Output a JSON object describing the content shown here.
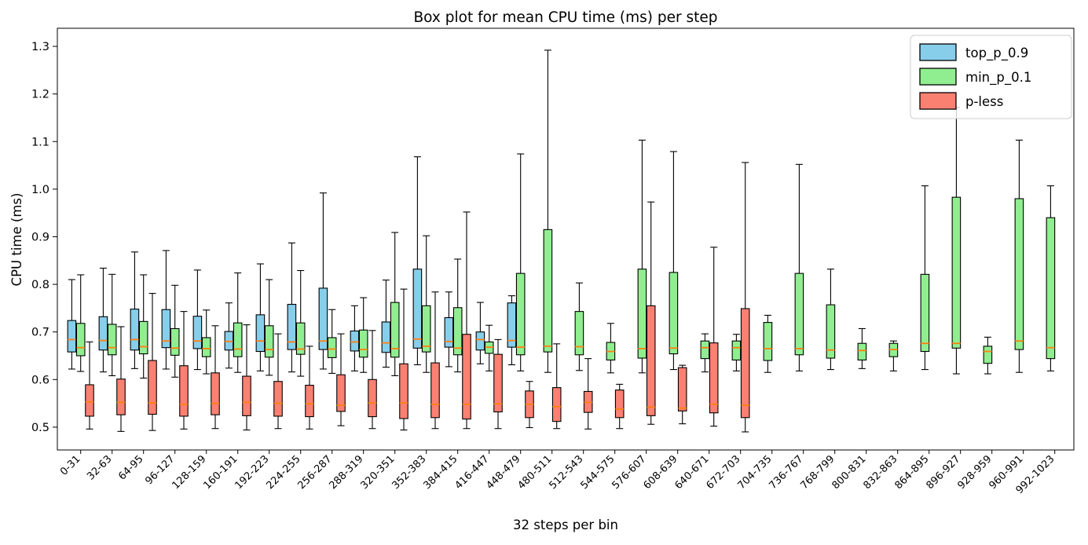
{
  "title": "Box plot for mean CPU time (ms) per step",
  "xlabel": "32 steps per bin",
  "ylabel": "CPU time (ms)",
  "legend": {
    "entries": [
      {
        "label": "top_p_0.9",
        "color": "#87CEEB"
      },
      {
        "label": "min_p_0.1",
        "color": "#90EE90"
      },
      {
        "label": "p-less",
        "color": "#FA8072"
      }
    ],
    "position": "upper right"
  },
  "chart_data": {
    "type": "box",
    "title": "Box plot for mean CPU time (ms) per step",
    "xlabel": "32 steps per bin",
    "ylabel": "CPU time (ms)",
    "grid": false,
    "legend_position": "upper right",
    "ylim": [
      0.452,
      1.338
    ],
    "yticks": [
      0.5,
      0.6,
      0.7,
      0.8,
      0.9,
      1.0,
      1.1,
      1.2,
      1.3
    ],
    "ytick_labels": [
      "0.5",
      "0.6",
      "0.7",
      "0.8",
      "0.9",
      "1.0",
      "1.1",
      "1.2",
      "1.3"
    ],
    "categories": [
      "0-31",
      "32-63",
      "64-95",
      "96-127",
      "128-159",
      "160-191",
      "192-223",
      "224-255",
      "256-287",
      "288-319",
      "320-351",
      "352-383",
      "384-415",
      "416-447",
      "448-479",
      "480-511",
      "512-543",
      "544-575",
      "576-607",
      "608-639",
      "640-671",
      "672-703",
      "704-735",
      "736-767",
      "768-799",
      "800-831",
      "832-863",
      "864-895",
      "896-927",
      "928-959",
      "960-991",
      "992-1023"
    ],
    "box_value_order": [
      "whisker_low",
      "q1",
      "median",
      "q3",
      "whisker_high"
    ],
    "median_color": "#ff7f0e",
    "series": [
      {
        "name": "top_p_0.9",
        "color": "#87CEEB",
        "boxes": [
          [
            0.622,
            0.658,
            0.684,
            0.724,
            0.81
          ],
          [
            0.616,
            0.662,
            0.682,
            0.732,
            0.834
          ],
          [
            0.623,
            0.662,
            0.684,
            0.748,
            0.868
          ],
          [
            0.622,
            0.667,
            0.681,
            0.747,
            0.871
          ],
          [
            0.621,
            0.665,
            0.681,
            0.733,
            0.83
          ],
          [
            0.624,
            0.662,
            0.68,
            0.701,
            0.761
          ],
          [
            0.618,
            0.659,
            0.681,
            0.736,
            0.843
          ],
          [
            0.616,
            0.663,
            0.679,
            0.758,
            0.887
          ],
          [
            0.622,
            0.663,
            0.681,
            0.792,
            0.992
          ],
          [
            0.618,
            0.66,
            0.679,
            0.702,
            0.755
          ],
          [
            0.626,
            0.657,
            0.677,
            0.721,
            0.809
          ],
          [
            0.631,
            0.666,
            0.685,
            0.832,
            1.068
          ],
          [
            0.627,
            0.668,
            0.68,
            0.73,
            0.784
          ],
          [
            0.633,
            0.662,
            0.684,
            0.7,
            0.762
          ],
          [
            0.631,
            0.668,
            0.682,
            0.761,
            0.776
          ],
          null,
          null,
          null,
          null,
          null,
          null,
          null,
          null,
          null,
          null,
          null,
          null,
          null,
          null,
          null,
          null,
          null
        ]
      },
      {
        "name": "min_p_0.1",
        "color": "#90EE90",
        "boxes": [
          [
            0.617,
            0.65,
            0.667,
            0.718,
            0.82
          ],
          [
            0.608,
            0.652,
            0.667,
            0.716,
            0.821
          ],
          [
            0.603,
            0.654,
            0.669,
            0.722,
            0.82
          ],
          [
            0.605,
            0.651,
            0.666,
            0.707,
            0.798
          ],
          [
            0.612,
            0.648,
            0.665,
            0.688,
            0.746
          ],
          [
            0.615,
            0.648,
            0.664,
            0.719,
            0.824
          ],
          [
            0.609,
            0.647,
            0.663,
            0.713,
            0.81
          ],
          [
            0.607,
            0.653,
            0.664,
            0.719,
            0.829
          ],
          [
            0.613,
            0.646,
            0.664,
            0.688,
            0.747
          ],
          [
            0.615,
            0.647,
            0.663,
            0.704,
            0.772
          ],
          [
            0.608,
            0.647,
            0.665,
            0.762,
            0.909
          ],
          [
            0.615,
            0.658,
            0.67,
            0.755,
            0.902
          ],
          [
            0.616,
            0.652,
            0.666,
            0.751,
            0.853
          ],
          [
            0.618,
            0.655,
            0.668,
            0.679,
            0.714
          ],
          [
            0.618,
            0.652,
            0.668,
            0.823,
            1.074
          ],
          [
            0.615,
            0.658,
            0.67,
            0.915,
            1.292
          ],
          [
            0.619,
            0.652,
            0.669,
            0.743,
            0.803
          ],
          [
            0.614,
            0.641,
            0.659,
            0.678,
            0.718
          ],
          [
            0.614,
            0.645,
            0.665,
            0.832,
            1.103
          ],
          [
            0.621,
            0.654,
            0.666,
            0.825,
            1.079
          ],
          [
            0.616,
            0.644,
            0.667,
            0.681,
            0.696
          ],
          [
            0.618,
            0.641,
            0.667,
            0.681,
            0.695
          ],
          [
            0.615,
            0.64,
            0.665,
            0.72,
            0.735
          ],
          [
            0.618,
            0.652,
            0.665,
            0.823,
            1.052
          ],
          [
            0.621,
            0.645,
            0.662,
            0.757,
            0.832
          ],
          [
            0.623,
            0.641,
            0.661,
            0.676,
            0.707
          ],
          [
            0.618,
            0.648,
            0.663,
            0.676,
            0.681
          ],
          [
            0.621,
            0.659,
            0.676,
            0.821,
            1.007
          ],
          [
            0.612,
            0.666,
            0.676,
            0.983,
            1.172
          ],
          [
            0.612,
            0.634,
            0.659,
            0.67,
            0.689
          ],
          [
            0.615,
            0.663,
            0.681,
            0.98,
            1.103
          ],
          [
            0.618,
            0.644,
            0.667,
            0.94,
            1.007
          ]
        ]
      },
      {
        "name": "p-less",
        "color": "#FA8072",
        "boxes": [
          [
            0.496,
            0.523,
            0.553,
            0.589,
            0.679
          ],
          [
            0.491,
            0.526,
            0.552,
            0.601,
            0.711
          ],
          [
            0.493,
            0.527,
            0.551,
            0.64,
            0.781
          ],
          [
            0.496,
            0.523,
            0.548,
            0.629,
            0.743
          ],
          [
            0.497,
            0.526,
            0.55,
            0.614,
            0.713
          ],
          [
            0.494,
            0.524,
            0.552,
            0.607,
            0.715
          ],
          [
            0.497,
            0.523,
            0.55,
            0.596,
            0.696
          ],
          [
            0.496,
            0.522,
            0.549,
            0.588,
            0.67
          ],
          [
            0.503,
            0.533,
            0.546,
            0.61,
            0.696
          ],
          [
            0.497,
            0.522,
            0.551,
            0.6,
            0.703
          ],
          [
            0.494,
            0.518,
            0.551,
            0.633,
            0.79
          ],
          [
            0.497,
            0.52,
            0.548,
            0.635,
            0.784
          ],
          [
            0.497,
            0.517,
            0.548,
            0.695,
            0.952
          ],
          [
            0.497,
            0.532,
            0.549,
            0.653,
            0.684
          ],
          [
            0.499,
            0.52,
            0.548,
            0.576,
            0.596
          ],
          [
            0.497,
            0.512,
            0.543,
            0.583,
            0.675
          ],
          [
            0.496,
            0.531,
            0.552,
            0.575,
            0.644
          ],
          [
            0.497,
            0.52,
            0.538,
            0.578,
            0.59
          ],
          [
            0.506,
            0.524,
            0.542,
            0.755,
            0.973
          ],
          [
            0.507,
            0.534,
            0.54,
            0.625,
            0.63
          ],
          [
            0.502,
            0.53,
            0.548,
            0.677,
            0.878
          ],
          [
            0.49,
            0.52,
            0.546,
            0.749,
            1.056
          ],
          null,
          null,
          null,
          null,
          null,
          null,
          null,
          null,
          null,
          null
        ]
      }
    ]
  }
}
